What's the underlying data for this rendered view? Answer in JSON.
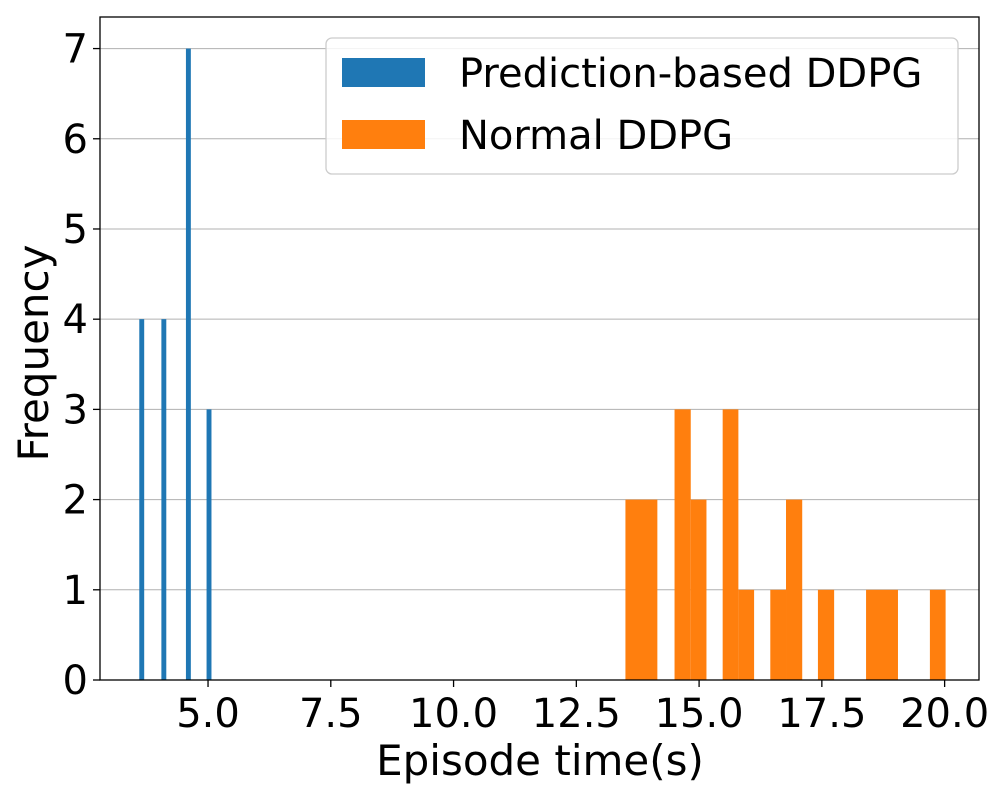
{
  "chart_data": {
    "type": "bar",
    "title": "",
    "xlabel": "Episode time(s)",
    "ylabel": "Frequency",
    "xlim": [
      2.8,
      20.7
    ],
    "ylim": [
      0,
      7.35
    ],
    "x_ticks": [
      5.0,
      7.5,
      10.0,
      12.5,
      15.0,
      17.5,
      20.0
    ],
    "x_tick_labels": [
      "5.0",
      "7.5",
      "10.0",
      "12.5",
      "15.0",
      "17.5",
      "20.0"
    ],
    "y_ticks": [
      0,
      1,
      2,
      3,
      4,
      5,
      6,
      7
    ],
    "y_tick_labels": [
      "0",
      "1",
      "2",
      "3",
      "4",
      "5",
      "6",
      "7"
    ],
    "grid": "horizontal",
    "legend_position": "top-right",
    "series": [
      {
        "name": "Prediction-based DDPG",
        "color": "#1f77b4",
        "bars": [
          {
            "x0": 3.6,
            "x1": 3.7,
            "y": 4
          },
          {
            "x0": 4.05,
            "x1": 4.15,
            "y": 4
          },
          {
            "x0": 4.55,
            "x1": 4.65,
            "y": 7
          },
          {
            "x0": 4.97,
            "x1": 5.07,
            "y": 3
          }
        ]
      },
      {
        "name": "Normal DDPG",
        "color": "#ff7f0e",
        "bars": [
          {
            "x0": 13.5,
            "x1": 14.15,
            "y": 2
          },
          {
            "x0": 14.5,
            "x1": 14.83,
            "y": 3
          },
          {
            "x0": 14.83,
            "x1": 15.15,
            "y": 2
          },
          {
            "x0": 15.48,
            "x1": 15.8,
            "y": 3
          },
          {
            "x0": 15.8,
            "x1": 16.12,
            "y": 1
          },
          {
            "x0": 16.45,
            "x1": 16.77,
            "y": 1
          },
          {
            "x0": 16.77,
            "x1": 17.1,
            "y": 2
          },
          {
            "x0": 17.42,
            "x1": 17.75,
            "y": 1
          },
          {
            "x0": 18.4,
            "x1": 19.05,
            "y": 1
          },
          {
            "x0": 19.7,
            "x1": 20.02,
            "y": 1
          }
        ]
      }
    ]
  }
}
